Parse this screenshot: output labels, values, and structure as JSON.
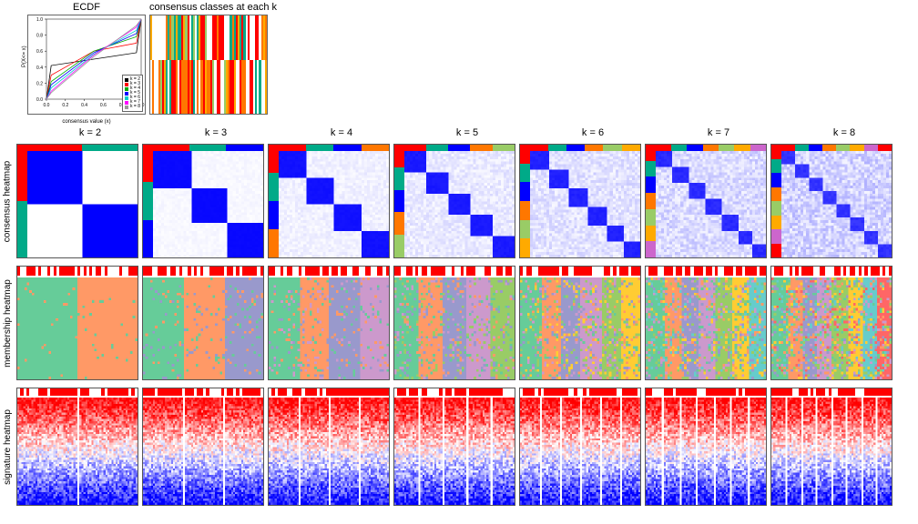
{
  "titles": {
    "ecdf": "ECDF",
    "consensus_k": "consensus classes at each k"
  },
  "ecdf": {
    "xlabel": "consensus value (x)",
    "ylabel": "P(X<= x)",
    "xlim": [
      0,
      1
    ],
    "ylim": [
      0,
      1
    ],
    "xticks": [
      "0.0",
      "0.2",
      "0.4",
      "0.6",
      "0.8",
      "1.0"
    ],
    "yticks": [
      "0.0",
      "0.2",
      "0.4",
      "0.6",
      "0.8",
      "1.0"
    ],
    "curves": [
      {
        "color": "#000000",
        "points": [
          [
            0,
            0
          ],
          [
            0.05,
            0.42
          ],
          [
            0.95,
            0.58
          ],
          [
            1,
            1
          ]
        ]
      },
      {
        "color": "#ff0000",
        "points": [
          [
            0,
            0
          ],
          [
            0.05,
            0.3
          ],
          [
            0.5,
            0.6
          ],
          [
            0.95,
            0.7
          ],
          [
            1,
            1
          ]
        ]
      },
      {
        "color": "#00aa00",
        "points": [
          [
            0,
            0
          ],
          [
            0.05,
            0.22
          ],
          [
            0.5,
            0.6
          ],
          [
            0.95,
            0.78
          ],
          [
            1,
            1
          ]
        ]
      },
      {
        "color": "#0000ff",
        "points": [
          [
            0,
            0
          ],
          [
            0.05,
            0.18
          ],
          [
            0.5,
            0.58
          ],
          [
            0.95,
            0.82
          ],
          [
            1,
            1
          ]
        ]
      },
      {
        "color": "#00cccc",
        "points": [
          [
            0,
            0
          ],
          [
            0.05,
            0.14
          ],
          [
            0.5,
            0.56
          ],
          [
            0.95,
            0.86
          ],
          [
            1,
            1
          ]
        ]
      },
      {
        "color": "#ff00ff",
        "points": [
          [
            0,
            0
          ],
          [
            0.05,
            0.1
          ],
          [
            0.5,
            0.55
          ],
          [
            0.95,
            0.9
          ],
          [
            1,
            1
          ]
        ]
      },
      {
        "color": "#999999",
        "points": [
          [
            0,
            0
          ],
          [
            0.05,
            0.08
          ],
          [
            0.5,
            0.53
          ],
          [
            0.95,
            0.92
          ],
          [
            1,
            1
          ]
        ]
      }
    ],
    "legend": [
      {
        "label": "k = 2",
        "color": "#000000"
      },
      {
        "label": "k = 3",
        "color": "#ff0000"
      },
      {
        "label": "k = 4",
        "color": "#00aa00"
      },
      {
        "label": "k = 5",
        "color": "#0000ff"
      },
      {
        "label": "k = 6",
        "color": "#00cccc"
      },
      {
        "label": "k = 7",
        "color": "#ff00ff"
      },
      {
        "label": "k = 8",
        "color": "#999999"
      }
    ]
  },
  "k_values": [
    2,
    3,
    4,
    5,
    6,
    7,
    8
  ],
  "k_label_template": "k = ",
  "row_labels": {
    "consensus": "consensus heatmap",
    "membership": "membership heatmap",
    "signature": "signature heatmap"
  },
  "consensus_classes_colors": [
    "#ff0000",
    "#ffffff",
    "#00aa88",
    "#ff7700",
    "#ffffff",
    "#ff0000",
    "#99cc66",
    "#ffffff",
    "#00aa88",
    "#ff0000",
    "#ffaa00",
    "#ffffff",
    "#ff0000",
    "#00aa88",
    "#ffffff",
    "#ff7700",
    "#ffffff",
    "#ffaa00",
    "#ff0000",
    "#ffffff"
  ],
  "consensus_heatmap": {
    "bg": "#ffffff",
    "block_color": "#0000ff",
    "fade_color": "#9999ff",
    "sidebar_colors": [
      "#ff0000",
      "#00aa88",
      "#0000ff",
      "#ff7700",
      "#99cc66",
      "#ffaa00",
      "#cc66cc"
    ],
    "border_color": "#555555"
  },
  "membership_heatmap": {
    "bg": "#ffffff",
    "palette": [
      "#66cc99",
      "#ff9966",
      "#9999cc",
      "#cc99cc",
      "#99cc66",
      "#ffcc33",
      "#66cccc",
      "#ff6666"
    ],
    "topbar_color": "#ff0000",
    "topbar_bg": "#ffffff"
  },
  "signature_heatmap": {
    "bg": "#ffffff",
    "top_color": "#ff0000",
    "bottom_color": "#0000ff",
    "white": "#ffffff",
    "topbar_color": "#ff0000"
  }
}
